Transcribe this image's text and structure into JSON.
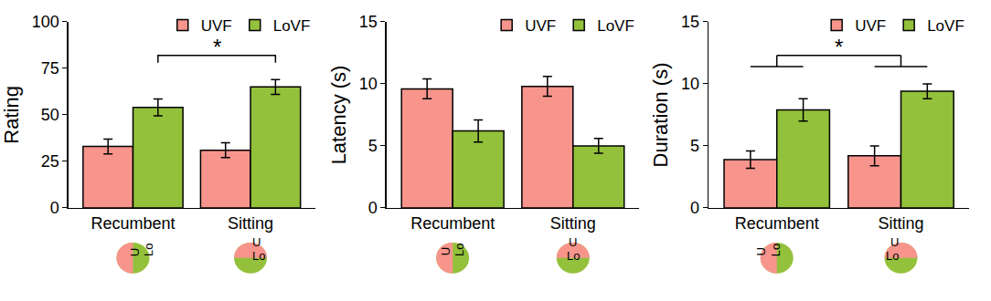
{
  "chart_data": [
    {
      "type": "bar",
      "ylabel": "Rating",
      "categories": [
        "Recumbent",
        "Sitting"
      ],
      "series": [
        {
          "name": "UVF",
          "color": "#f7958d",
          "values": [
            33,
            31
          ],
          "errors": [
            4,
            4
          ]
        },
        {
          "name": "LoVF",
          "color": "#93c13b",
          "values": [
            54,
            65
          ],
          "errors": [
            4.5,
            4
          ]
        }
      ],
      "ylim": [
        0,
        100
      ],
      "yticks": [
        0,
        25,
        50,
        75,
        100
      ],
      "grid": false,
      "legend": "top right",
      "significance": [
        {
          "label": "*",
          "between": [
            "Recumbent",
            "Sitting"
          ],
          "series": "LoVF",
          "y": 82
        }
      ],
      "icon_labels": {
        "upper": "U",
        "lower": "Lo"
      }
    },
    {
      "type": "bar",
      "ylabel": "Latency (s)",
      "categories": [
        "Recumbent",
        "Sitting"
      ],
      "series": [
        {
          "name": "UVF",
          "color": "#f7958d",
          "values": [
            9.6,
            9.8
          ],
          "errors": [
            0.8,
            0.8
          ]
        },
        {
          "name": "LoVF",
          "color": "#93c13b",
          "values": [
            6.2,
            5.0
          ],
          "errors": [
            0.9,
            0.6
          ]
        }
      ],
      "ylim": [
        0,
        15
      ],
      "yticks": [
        0,
        5,
        10,
        15
      ],
      "grid": false,
      "legend": "top right",
      "significance": [],
      "icon_labels": {
        "upper": "U",
        "lower": "Lo"
      }
    },
    {
      "type": "bar",
      "ylabel": "Duration (s)",
      "categories": [
        "Recumbent",
        "Sitting"
      ],
      "series": [
        {
          "name": "UVF",
          "color": "#f7958d",
          "values": [
            3.9,
            4.2
          ],
          "errors": [
            0.7,
            0.8
          ]
        },
        {
          "name": "LoVF",
          "color": "#93c13b",
          "values": [
            7.9,
            9.4
          ],
          "errors": [
            0.9,
            0.6
          ]
        }
      ],
      "ylim": [
        0,
        15
      ],
      "yticks": [
        0,
        5,
        10,
        15
      ],
      "grid": false,
      "legend": "top right",
      "significance": [
        {
          "label": "*",
          "between": [
            "Recumbent",
            "Sitting"
          ],
          "y": 12.3
        }
      ],
      "icon_labels": {
        "upper": "U",
        "lower": "Lo"
      }
    }
  ]
}
